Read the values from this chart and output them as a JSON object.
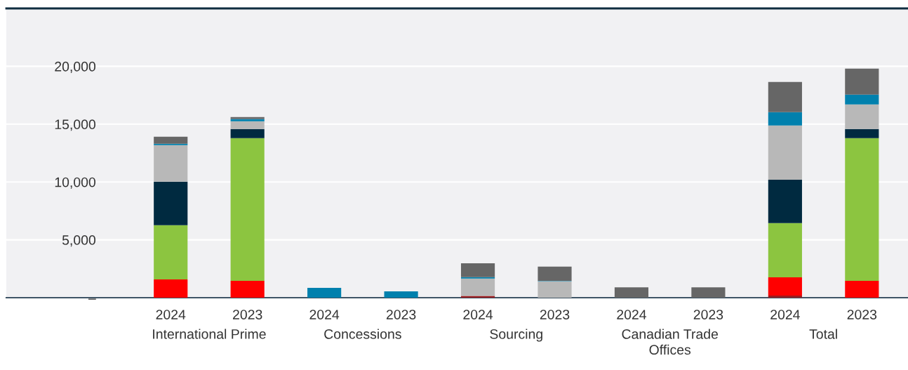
{
  "chart_data": {
    "type": "bar",
    "stacked": true,
    "categories": [
      "2024",
      "2023",
      "2024",
      "2023",
      "2024",
      "2023",
      "2024",
      "2023",
      "2024",
      "2023"
    ],
    "annotations": [
      "International Prime",
      "Concessions",
      "Sourcing",
      "Canadian Trade\nOffices",
      "Total"
    ],
    "series": [
      {
        "color": "#9b1c20",
        "values": [
          null,
          null,
          null,
          null,
          150,
          null,
          null,
          null,
          180,
          null
        ]
      },
      {
        "color": "#ff0000",
        "values": [
          1580,
          1460,
          null,
          null,
          null,
          null,
          null,
          null,
          1580,
          1460
        ]
      },
      {
        "color": "#8cc540",
        "values": [
          4680,
          12330,
          null,
          null,
          null,
          null,
          null,
          null,
          4680,
          12330
        ]
      },
      {
        "color": "#002a40",
        "values": [
          3760,
          790,
          null,
          null,
          null,
          null,
          null,
          null,
          3760,
          790
        ]
      },
      {
        "color": "#b8b8b8",
        "values": [
          3160,
          670,
          null,
          null,
          1500,
          1420,
          null,
          null,
          4680,
          2120
        ]
      },
      {
        "color": "#0080ad",
        "values": [
          120,
          200,
          850,
          550,
          120,
          40,
          null,
          null,
          1150,
          850
        ]
      },
      {
        "color": "#666666",
        "values": [
          610,
          160,
          null,
          null,
          1210,
          1230,
          900,
          900,
          2610,
          2250
        ]
      }
    ],
    "ylim": [
      0,
      25000
    ],
    "yticks": [
      {
        "value": 0,
        "label": "–"
      },
      {
        "value": 5000,
        "label": "5,000"
      },
      {
        "value": 10000,
        "label": "10,000"
      },
      {
        "value": 15000,
        "label": "15,000"
      },
      {
        "value": 20000,
        "label": "20,000"
      }
    ],
    "grid": "y",
    "legend": false
  }
}
